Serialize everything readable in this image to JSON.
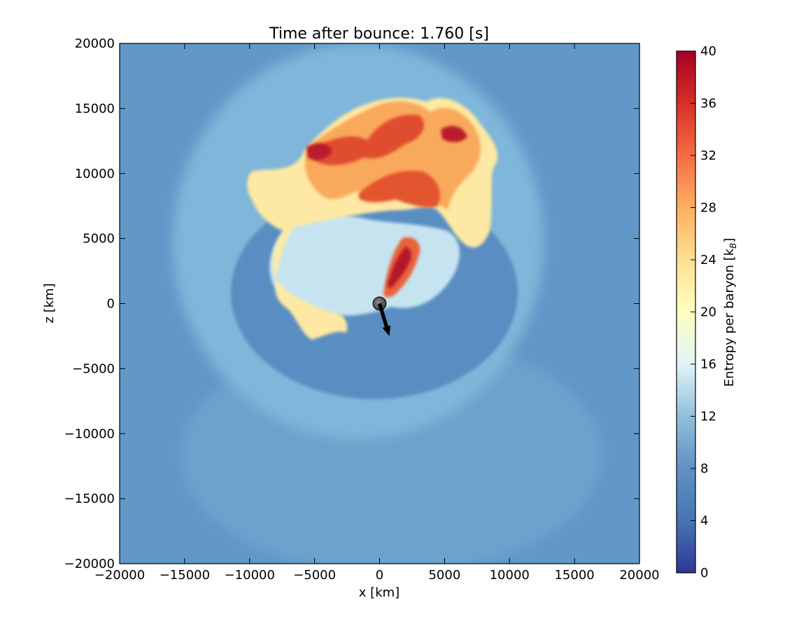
{
  "chart_data": {
    "type": "heatmap",
    "title": "Time after bounce: 1.760 [s]",
    "xlabel": "x [km]",
    "ylabel": "z [km]",
    "xlim": [
      -20000,
      20000
    ],
    "ylim": [
      -20000,
      20000
    ],
    "x_ticks": [
      -20000,
      -15000,
      -10000,
      -5000,
      0,
      5000,
      10000,
      15000,
      20000
    ],
    "y_ticks": [
      -20000,
      -15000,
      -10000,
      -5000,
      0,
      5000,
      10000,
      15000,
      20000
    ],
    "x_tick_labels": [
      "−20000",
      "−15000",
      "−10000",
      "−5000",
      "0",
      "5000",
      "10000",
      "15000",
      "20000"
    ],
    "y_tick_labels": [
      "−20000",
      "−15000",
      "−10000",
      "−5000",
      "0",
      "5000",
      "10000",
      "15000",
      "20000"
    ],
    "colorbar": {
      "label": "Entropy per baryon [k_B]",
      "label_main": "Entropy per baryon [k",
      "label_sub": "B",
      "label_close": "]",
      "colormap": "RdYlBu_r",
      "range": [
        0,
        40
      ],
      "ticks": [
        0,
        4,
        8,
        12,
        16,
        20,
        24,
        28,
        32,
        36,
        40
      ],
      "tick_labels": [
        "0",
        "4",
        "8",
        "12",
        "16",
        "20",
        "24",
        "28",
        "32",
        "36",
        "40"
      ]
    },
    "background_entropy": 8,
    "shock_shell_entropy": 10,
    "inner_cavity_entropy": 7,
    "plume_entropy_range": [
      14,
      40
    ],
    "neutron_star": {
      "x": 0,
      "z": 0,
      "radius_km": 500
    },
    "kick_arrow": {
      "x0": 0,
      "z0": 0,
      "x1": 750,
      "z1": -2500
    }
  }
}
